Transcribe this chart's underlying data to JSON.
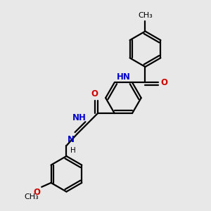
{
  "bg_color": "#e8e8e8",
  "bond_color": "#000000",
  "nitrogen_color": "#0000cc",
  "oxygen_color": "#cc0000",
  "line_width": 1.6,
  "font_size_atom": 8.5,
  "fig_size": [
    3.0,
    3.0
  ],
  "dpi": 100,
  "xlim": [
    0,
    10
  ],
  "ylim": [
    0,
    10
  ]
}
